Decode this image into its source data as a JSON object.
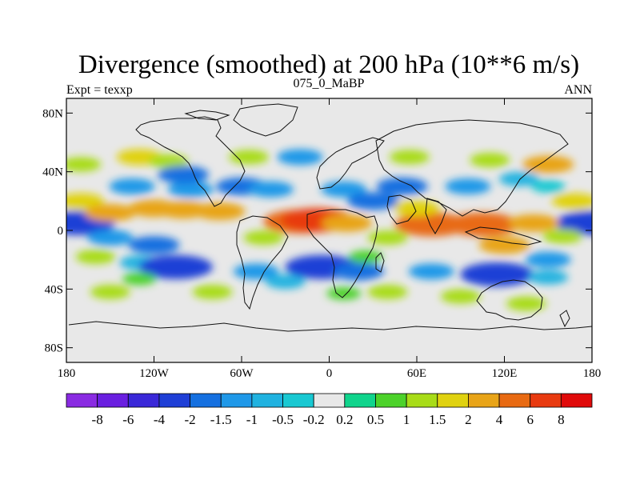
{
  "chart_data": {
    "type": "heatmap",
    "title": "Divergence (smoothed) at 200 hPa (10**6 m/s)",
    "left_string": "Expt = texxp",
    "center_string": "075_0_MaBP",
    "right_string": "ANN",
    "lon_range": [
      -180,
      180
    ],
    "lat_range": [
      -90,
      90
    ],
    "x_ticks": [
      {
        "value": -180,
        "label": "180"
      },
      {
        "value": -120,
        "label": "120W"
      },
      {
        "value": -60,
        "label": "60W"
      },
      {
        "value": 0,
        "label": "0"
      },
      {
        "value": 60,
        "label": "60E"
      },
      {
        "value": 120,
        "label": "120E"
      },
      {
        "value": 180,
        "label": "180"
      }
    ],
    "y_ticks": [
      {
        "value": 80,
        "label": "80N"
      },
      {
        "value": 40,
        "label": "40N"
      },
      {
        "value": 0,
        "label": "0"
      },
      {
        "value": -40,
        "label": "40S"
      },
      {
        "value": -80,
        "label": "80S"
      }
    ],
    "contour_levels": [
      -8,
      -6,
      -4,
      -2,
      -1.5,
      -1,
      -0.5,
      -0.2,
      0.2,
      0.5,
      1,
      1.5,
      2,
      4,
      6,
      8
    ],
    "colorbar_labels": [
      "-8",
      "-6",
      "-4",
      "-2",
      "-1.5",
      "-1",
      "-0.5",
      "-0.2",
      "0.2",
      "0.5",
      "1",
      "1.5",
      "2",
      "4",
      "6",
      "8"
    ],
    "colors": [
      "#8a2be2",
      "#6a1fe0",
      "#3a28d8",
      "#1f3fd6",
      "#1570e0",
      "#1f98e8",
      "#20b2e0",
      "#19c8d2",
      "#e8e8e8",
      "#10d48c",
      "#4cd22a",
      "#a8dc18",
      "#e0d210",
      "#e8a418",
      "#e86a12",
      "#e83a10",
      "#e00a0a"
    ],
    "fields": [
      {
        "lon": 180,
        "lat": 5,
        "value": -4
      },
      {
        "lon": -172,
        "lat": 5,
        "value": -4
      },
      {
        "lon": -170,
        "lat": 20,
        "value": 1.5
      },
      {
        "lon": 168,
        "lat": 20,
        "value": 1.5
      },
      {
        "lon": -150,
        "lat": 12,
        "value": 2
      },
      {
        "lon": -120,
        "lat": 15,
        "value": 2
      },
      {
        "lon": -100,
        "lat": 14,
        "value": 2
      },
      {
        "lon": -75,
        "lat": 13,
        "value": 2
      },
      {
        "lon": -150,
        "lat": -5,
        "value": -1.5
      },
      {
        "lon": -120,
        "lat": -10,
        "value": -2
      },
      {
        "lon": -160,
        "lat": -18,
        "value": 1
      },
      {
        "lon": -130,
        "lat": -22,
        "value": -1
      },
      {
        "lon": -105,
        "lat": -25,
        "value": -4
      },
      {
        "lon": -130,
        "lat": -33,
        "value": 0.5
      },
      {
        "lon": -150,
        "lat": -42,
        "value": 1
      },
      {
        "lon": -80,
        "lat": -42,
        "value": 1
      },
      {
        "lon": -170,
        "lat": 45,
        "value": 1
      },
      {
        "lon": -130,
        "lat": 50,
        "value": 1.5
      },
      {
        "lon": -110,
        "lat": 47,
        "value": 1
      },
      {
        "lon": -135,
        "lat": 30,
        "value": -1.5
      },
      {
        "lon": -95,
        "lat": 28,
        "value": -1.5
      },
      {
        "lon": -100,
        "lat": 38,
        "value": -2
      },
      {
        "lon": -60,
        "lat": 30,
        "value": -2
      },
      {
        "lon": -40,
        "lat": 28,
        "value": -1.5
      },
      {
        "lon": -20,
        "lat": 50,
        "value": -1.5
      },
      {
        "lon": -55,
        "lat": 50,
        "value": 1
      },
      {
        "lon": -20,
        "lat": 6,
        "value": 4
      },
      {
        "lon": -8,
        "lat": 7,
        "value": 6
      },
      {
        "lon": 12,
        "lat": 5,
        "value": 2
      },
      {
        "lon": -45,
        "lat": -5,
        "value": 1
      },
      {
        "lon": -50,
        "lat": -28,
        "value": -1.5
      },
      {
        "lon": -5,
        "lat": -25,
        "value": -4
      },
      {
        "lon": 20,
        "lat": -28,
        "value": -2
      },
      {
        "lon": -30,
        "lat": -35,
        "value": -1
      },
      {
        "lon": 10,
        "lat": -43,
        "value": 0.5
      },
      {
        "lon": 25,
        "lat": -18,
        "value": 0.5
      },
      {
        "lon": 10,
        "lat": 28,
        "value": -1.5
      },
      {
        "lon": 30,
        "lat": 20,
        "value": -2
      },
      {
        "lon": 50,
        "lat": 30,
        "value": -2
      },
      {
        "lon": 95,
        "lat": 30,
        "value": -1.5
      },
      {
        "lon": 130,
        "lat": 35,
        "value": -1
      },
      {
        "lon": 150,
        "lat": 30,
        "value": -0.5
      },
      {
        "lon": 55,
        "lat": 50,
        "value": 1
      },
      {
        "lon": 110,
        "lat": 48,
        "value": 1
      },
      {
        "lon": 150,
        "lat": 45,
        "value": 2
      },
      {
        "lon": 70,
        "lat": 4,
        "value": 4
      },
      {
        "lon": 105,
        "lat": 4,
        "value": 4
      },
      {
        "lon": 140,
        "lat": 5,
        "value": 2
      },
      {
        "lon": 60,
        "lat": 15,
        "value": 1.5
      },
      {
        "lon": 40,
        "lat": -5,
        "value": 1
      },
      {
        "lon": 160,
        "lat": -4,
        "value": 1
      },
      {
        "lon": 120,
        "lat": -10,
        "value": 2
      },
      {
        "lon": 70,
        "lat": -28,
        "value": -1.5
      },
      {
        "lon": 115,
        "lat": -30,
        "value": -4
      },
      {
        "lon": 150,
        "lat": -20,
        "value": -1.5
      },
      {
        "lon": 150,
        "lat": -32,
        "value": -1
      },
      {
        "lon": 90,
        "lat": -45,
        "value": 1
      },
      {
        "lon": 135,
        "lat": -50,
        "value": 1
      },
      {
        "lon": 40,
        "lat": -42,
        "value": 1
      }
    ]
  }
}
